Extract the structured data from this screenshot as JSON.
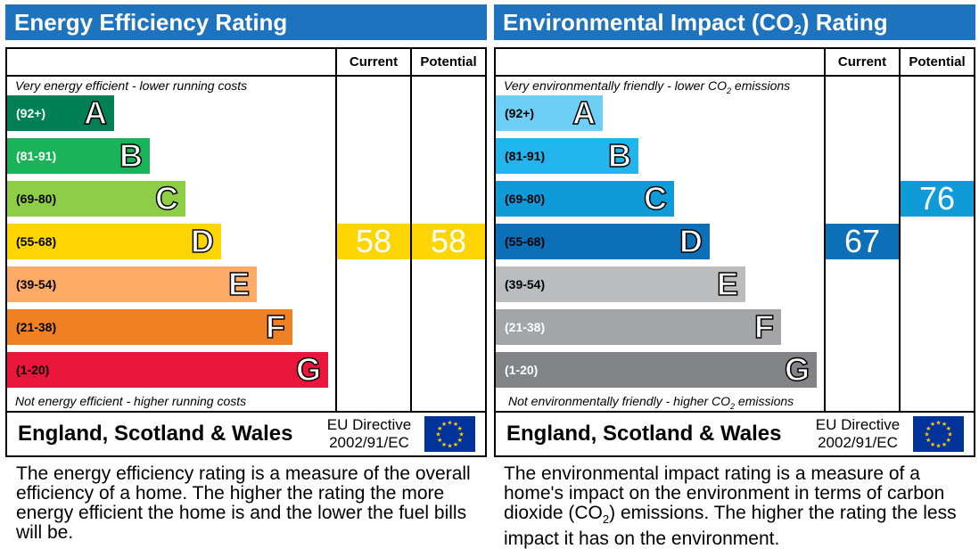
{
  "panels": [
    {
      "title": "Energy Efficiency Rating",
      "column_current": "Current",
      "column_potential": "Potential",
      "top_caption": "Very energy efficient - lower running costs",
      "bottom_caption": "Not energy efficient - higher running costs",
      "region": "England, Scotland & Wales",
      "directive_line1": "EU Directive",
      "directive_line2": "2002/91/EC",
      "description": "The energy efficiency rating is a measure of the overall efficiency of a home. The higher the rating the more energy efficient the home is and the lower the fuel bills will be."
    },
    {
      "title_before": "Environmental Impact (CO",
      "title_sub": "2",
      "title_after": ") Rating",
      "column_current": "Current",
      "column_potential": "Potential",
      "top_caption_before": "Very environmentally friendly - lower CO",
      "top_caption_sub": "2",
      "top_caption_after": " emissions",
      "bottom_caption_before": "Not environmentally friendly - higher CO",
      "bottom_caption_sub": "2",
      "bottom_caption_after": " emissions",
      "region": "England, Scotland & Wales",
      "directive_line1": "EU Directive",
      "directive_line2": "2002/91/EC",
      "description_before": "The environmental impact rating is a measure of a home's impact on the environment in terms of carbon dioxide (CO",
      "description_sub": "2",
      "description_after": ") emissions. The higher the rating the less impact it has on the environment."
    }
  ],
  "chart_data": [
    {
      "type": "bar",
      "title": "Energy Efficiency Rating",
      "categories": [
        "A",
        "B",
        "C",
        "D",
        "E",
        "F",
        "G"
      ],
      "ranges": [
        "(92+)",
        "(81-91)",
        "(69-80)",
        "(55-68)",
        "(39-54)",
        "(21-38)",
        "(1-20)"
      ],
      "band_colors": [
        "#008054",
        "#19b459",
        "#8dce46",
        "#ffd500",
        "#fcaa65",
        "#ef8023",
        "#e9153b"
      ],
      "range_text_colors": [
        "#ffffff",
        "#ffffff",
        "#000000",
        "#000000",
        "#000000",
        "#000000",
        "#000000"
      ],
      "series": [
        {
          "name": "Current",
          "value": 58,
          "band": "D",
          "color": "#ffd500"
        },
        {
          "name": "Potential",
          "value": 58,
          "band": "D",
          "color": "#ffd500"
        }
      ]
    },
    {
      "type": "bar",
      "title": "Environmental Impact (CO2) Rating",
      "categories": [
        "A",
        "B",
        "C",
        "D",
        "E",
        "F",
        "G"
      ],
      "ranges": [
        "(92+)",
        "(81-91)",
        "(69-80)",
        "(55-68)",
        "(39-54)",
        "(21-38)",
        "(1-20)"
      ],
      "band_colors": [
        "#6ecff6",
        "#22b5ed",
        "#0f9ad8",
        "#0c70b8",
        "#bbbcbe",
        "#a3a5a8",
        "#818386"
      ],
      "range_text_colors": [
        "#000000",
        "#000000",
        "#000000",
        "#000000",
        "#000000",
        "#ffffff",
        "#ffffff"
      ],
      "series": [
        {
          "name": "Current",
          "value": 67,
          "band": "D",
          "color": "#0c70b8"
        },
        {
          "name": "Potential",
          "value": 76,
          "band": "C",
          "color": "#0f9ad8"
        }
      ]
    }
  ]
}
